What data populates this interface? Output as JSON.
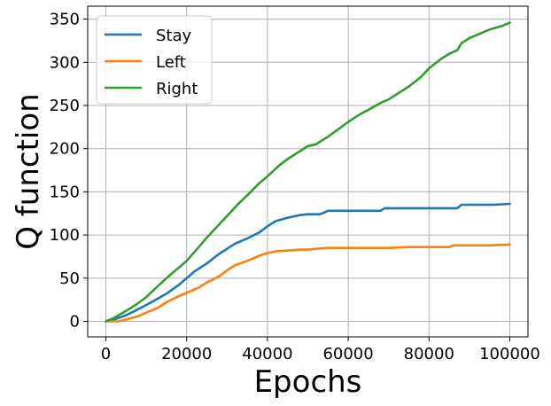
{
  "chart_data": {
    "type": "line",
    "title": "",
    "xlabel": "Epochs",
    "ylabel": "Q function",
    "xlim": [
      -4500,
      104500
    ],
    "ylim": [
      -18,
      365
    ],
    "xticks": [
      0,
      20000,
      40000,
      60000,
      80000,
      100000
    ],
    "xtick_labels": [
      "0",
      "20000",
      "40000",
      "60000",
      "80000",
      "100000"
    ],
    "yticks": [
      0,
      50,
      100,
      150,
      200,
      250,
      300,
      350
    ],
    "ytick_labels": [
      "0",
      "50",
      "100",
      "150",
      "200",
      "250",
      "300",
      "350"
    ],
    "grid": true,
    "legend_position": "top-left",
    "series": [
      {
        "name": "Stay",
        "color": "#1f77b4",
        "x": [
          0,
          2000,
          5000,
          8000,
          10000,
          12000,
          15000,
          18000,
          20000,
          22000,
          25000,
          28000,
          30000,
          32000,
          35000,
          38000,
          40000,
          42000,
          45000,
          48000,
          50000,
          53000,
          54000,
          55000,
          60000,
          65000,
          68000,
          69000,
          75000,
          80000,
          85000,
          87000,
          88000,
          92000,
          96000,
          100000
        ],
        "y": [
          0,
          2,
          7,
          14,
          19,
          24,
          32,
          42,
          50,
          58,
          67,
          78,
          84,
          90,
          96,
          103,
          110,
          116,
          120,
          123,
          124,
          124,
          126,
          128,
          128,
          128,
          128,
          131,
          131,
          131,
          131,
          131,
          135,
          135,
          135,
          136
        ]
      },
      {
        "name": "Left",
        "color": "#ff7f0e",
        "x": [
          0,
          3000,
          5000,
          8000,
          10000,
          13000,
          15000,
          18000,
          20000,
          23000,
          25000,
          28000,
          30000,
          32000,
          35000,
          38000,
          40000,
          42000,
          45000,
          48000,
          50000,
          52000,
          55000,
          60000,
          65000,
          70000,
          75000,
          80000,
          85000,
          86000,
          90000,
          95000,
          100000
        ],
        "y": [
          0,
          0,
          2,
          6,
          10,
          16,
          22,
          29,
          33,
          39,
          45,
          52,
          59,
          65,
          70,
          76,
          79,
          81,
          82,
          83,
          83,
          84,
          85,
          85,
          85,
          85,
          86,
          86,
          86,
          88,
          88,
          88,
          89
        ]
      },
      {
        "name": "Right",
        "color": "#2ca02c",
        "x": [
          0,
          2000,
          5000,
          8000,
          10000,
          12000,
          15000,
          18000,
          20000,
          23000,
          25000,
          28000,
          30000,
          33000,
          35000,
          38000,
          40000,
          43000,
          45000,
          48000,
          50000,
          52000,
          55000,
          58000,
          60000,
          63000,
          65000,
          68000,
          70000,
          73000,
          75000,
          78000,
          80000,
          83000,
          85000,
          87000,
          88000,
          90000,
          93000,
          95000,
          98000,
          100000
        ],
        "y": [
          0,
          4,
          12,
          21,
          28,
          37,
          50,
          62,
          70,
          86,
          97,
          112,
          122,
          137,
          146,
          160,
          168,
          181,
          188,
          197,
          203,
          205,
          214,
          224,
          231,
          240,
          245,
          253,
          257,
          266,
          272,
          283,
          293,
          304,
          310,
          314,
          322,
          328,
          334,
          338,
          342,
          346
        ]
      }
    ]
  }
}
